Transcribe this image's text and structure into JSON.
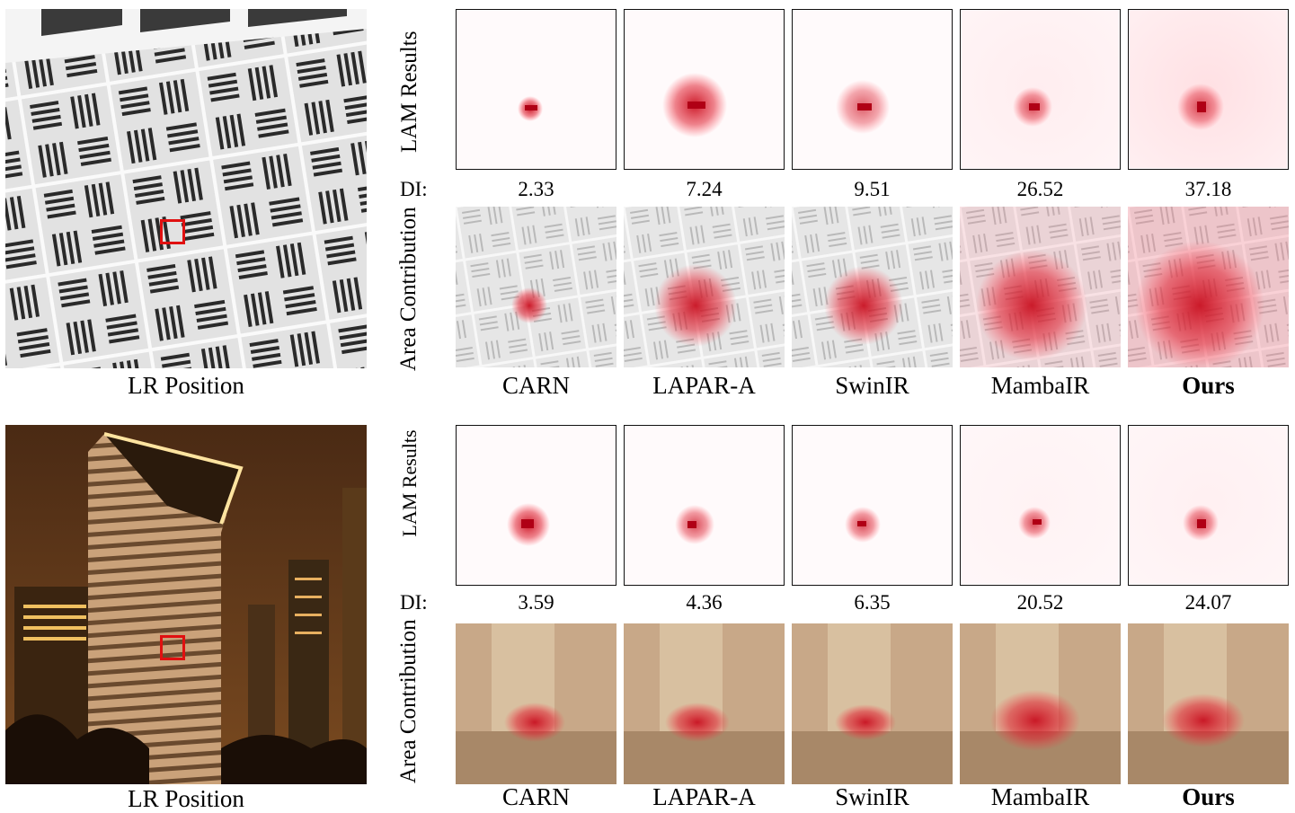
{
  "rows": [
    {
      "lr_caption": "LR Position",
      "lam_label": "LAM Results",
      "di_label": "DI:",
      "area_label": "Area Contribution",
      "di_values": [
        "2.33",
        "7.24",
        "9.51",
        "26.52",
        "37.18"
      ],
      "methods": [
        "CARN",
        "LAPAR-A",
        "SwinIR",
        "MambaIR",
        "Ours"
      ]
    },
    {
      "lr_caption": "LR Position",
      "lam_label": "LAM Results",
      "di_label": "DI:",
      "area_label": "Area Contribution",
      "di_values": [
        "3.59",
        "4.36",
        "6.35",
        "20.52",
        "24.07"
      ],
      "methods": [
        "CARN",
        "LAPAR-A",
        "SwinIR",
        "MambaIR",
        "Ours"
      ]
    }
  ],
  "colors": {
    "highlight": "#e01010",
    "lam_red": "#d0101a"
  }
}
